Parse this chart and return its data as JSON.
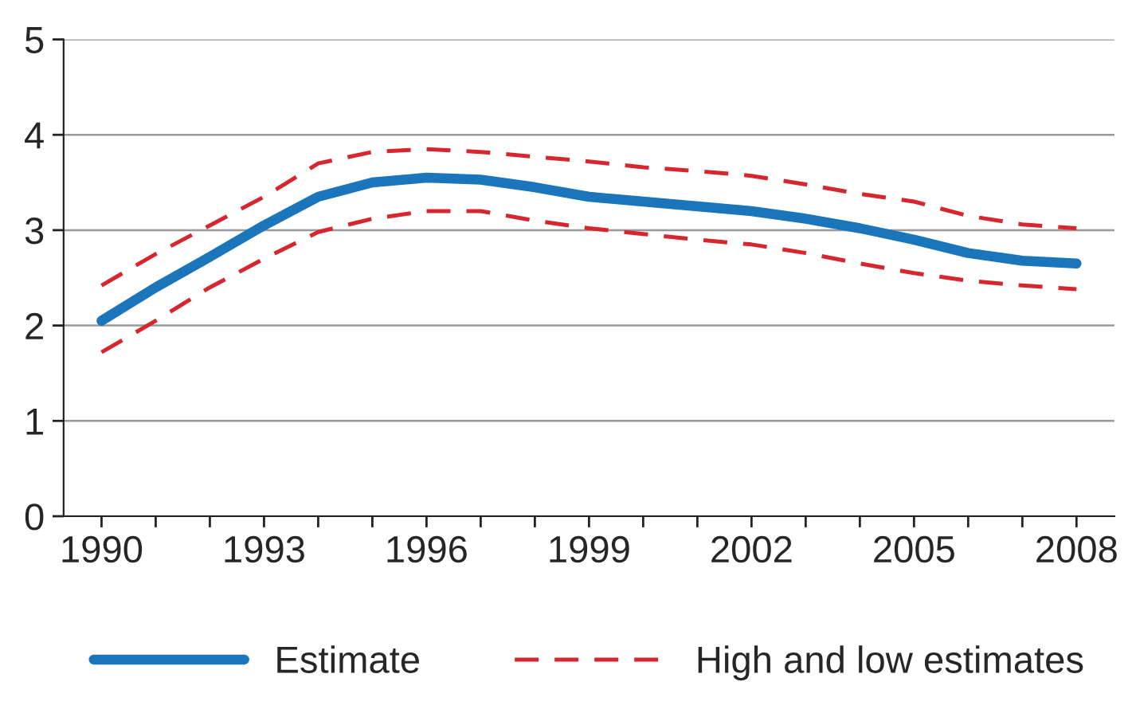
{
  "chart_data": {
    "type": "line",
    "x": [
      1990,
      1991,
      1992,
      1993,
      1994,
      1995,
      1996,
      1997,
      1998,
      1999,
      2000,
      2001,
      2002,
      2003,
      2004,
      2005,
      2006,
      2007,
      2008
    ],
    "series": [
      {
        "name": "Estimate",
        "color": "#1a75bb",
        "line_style": "solid",
        "values": [
          2.05,
          2.4,
          2.72,
          3.05,
          3.35,
          3.5,
          3.55,
          3.53,
          3.45,
          3.35,
          3.3,
          3.25,
          3.2,
          3.12,
          3.02,
          2.9,
          2.76,
          2.68,
          2.65
        ]
      },
      {
        "name": "High and low estimates",
        "color": "#d7262e",
        "line_style": "dashed",
        "values": [
          2.42,
          2.75,
          3.05,
          3.35,
          3.7,
          3.82,
          3.85,
          3.82,
          3.77,
          3.72,
          3.66,
          3.62,
          3.57,
          3.48,
          3.38,
          3.3,
          3.15,
          3.06,
          3.02
        ]
      },
      {
        "color": "#d7262e",
        "line_style": "dashed",
        "values": [
          1.72,
          2.05,
          2.4,
          2.7,
          2.98,
          3.12,
          3.2,
          3.2,
          3.1,
          3.02,
          2.96,
          2.9,
          2.85,
          2.76,
          2.65,
          2.55,
          2.47,
          2.42,
          2.38
        ]
      }
    ],
    "xlim": [
      1989.3,
      2008.7
    ],
    "xticks": [
      1990,
      {
        "value": 1991,
        "label": null
      },
      {
        "value": 1992,
        "label": null
      },
      1993,
      {
        "value": 1994,
        "label": null
      },
      {
        "value": 1995,
        "label": null
      },
      1996,
      {
        "value": 1997,
        "label": null
      },
      {
        "value": 1998,
        "label": null
      },
      1999,
      {
        "value": 2000,
        "label": null
      },
      {
        "value": 2001,
        "label": null
      },
      2002,
      {
        "value": 2003,
        "label": null
      },
      {
        "value": 2004,
        "label": null
      },
      2005,
      {
        "value": 2006,
        "label": null
      },
      {
        "value": 2007,
        "label": null
      },
      2008
    ],
    "ylim": [
      0,
      5
    ],
    "yticks": [
      0,
      1,
      2,
      3,
      4,
      5
    ],
    "grid": "y",
    "legend": "bottom",
    "marker": "none"
  }
}
